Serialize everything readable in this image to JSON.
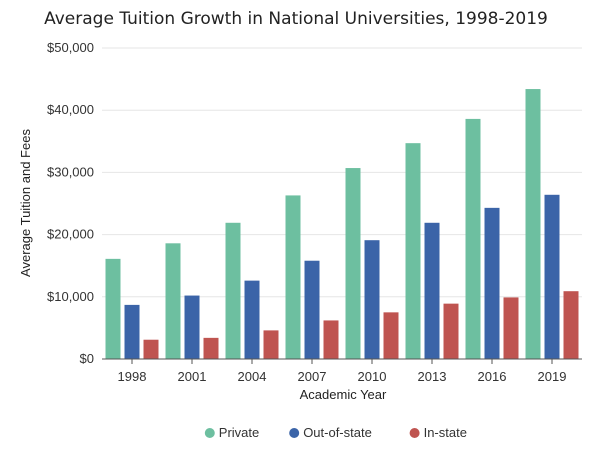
{
  "chart_data": {
    "type": "bar",
    "title": "Average Tuition Growth in National Universities, 1998-2019",
    "xlabel": "Academic Year",
    "ylabel": "Average Tuition and Fees",
    "categories": [
      "1998",
      "2001",
      "2004",
      "2007",
      "2010",
      "2013",
      "2016",
      "2019"
    ],
    "series": [
      {
        "name": "Private",
        "color": "#6dbfa0",
        "values": [
          16100,
          18600,
          21900,
          26300,
          30700,
          34700,
          38600,
          43400
        ]
      },
      {
        "name": "Out-of-state",
        "color": "#3b64a8",
        "values": [
          8700,
          10200,
          12600,
          15800,
          19100,
          21900,
          24300,
          26400
        ]
      },
      {
        "name": "In-state",
        "color": "#bf5450",
        "values": [
          3100,
          3400,
          4600,
          6200,
          7500,
          8900,
          9900,
          10900
        ]
      }
    ],
    "ylim": [
      0,
      50000
    ],
    "yticks": [
      0,
      10000,
      20000,
      30000,
      40000,
      50000
    ],
    "ytick_labels": [
      "$0",
      "$10,000",
      "$20,000",
      "$30,000",
      "$40,000",
      "$50,000"
    ],
    "grid": true,
    "legend_position": "bottom"
  }
}
